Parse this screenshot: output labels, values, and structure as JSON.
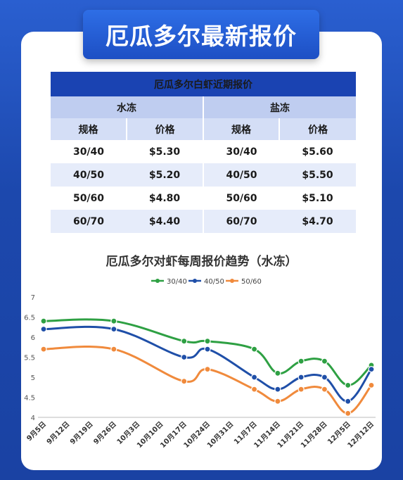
{
  "header": {
    "title": "厄瓜多尔最新报价"
  },
  "table": {
    "title": "厄瓜多尔白虾近期报价",
    "group_frozen": "水冻",
    "group_salt": "盐冻",
    "col_spec": "规格",
    "col_price": "价格",
    "rows": [
      {
        "spec1": "30/40",
        "price1": "$5.30",
        "spec2": "30/40",
        "price2": "$5.60"
      },
      {
        "spec1": "40/50",
        "price1": "$5.20",
        "spec2": "40/50",
        "price2": "$5.50"
      },
      {
        "spec1": "50/60",
        "price1": "$4.80",
        "spec2": "50/60",
        "price2": "$5.10"
      },
      {
        "spec1": "60/70",
        "price1": "$4.40",
        "spec2": "60/70",
        "price2": "$4.70"
      }
    ]
  },
  "chart_data": {
    "type": "line",
    "title": "厄瓜多尔对虾每周报价趋势（水冻）",
    "categories": [
      "9月5日",
      "9月12日",
      "9月19日",
      "9月26日",
      "10月3日",
      "10月10日",
      "10月17日",
      "10月24日",
      "10月31日",
      "11月7日",
      "11月14日",
      "11月21日",
      "11月28日",
      "12月5日",
      "12月12日"
    ],
    "series": [
      {
        "name": "30/40",
        "color": "#2ea043",
        "values": [
          6.4,
          null,
          null,
          6.4,
          null,
          null,
          5.9,
          5.9,
          null,
          5.7,
          5.1,
          5.4,
          5.4,
          4.8,
          5.3
        ]
      },
      {
        "name": "40/50",
        "color": "#1f4fa8",
        "values": [
          6.2,
          null,
          null,
          6.2,
          null,
          null,
          5.5,
          5.7,
          null,
          5.0,
          4.7,
          5.0,
          5.0,
          4.4,
          5.2
        ]
      },
      {
        "name": "50/60",
        "color": "#f08a3c",
        "values": [
          5.7,
          null,
          null,
          5.7,
          null,
          null,
          4.9,
          5.2,
          null,
          4.7,
          4.4,
          4.7,
          4.7,
          4.1,
          4.8
        ]
      }
    ],
    "ylim": [
      4,
      7
    ],
    "yticks": [
      "4",
      "4.5",
      "5",
      "5.5",
      "6",
      "6.5",
      "7"
    ],
    "legend_position": "top",
    "grid": false
  }
}
